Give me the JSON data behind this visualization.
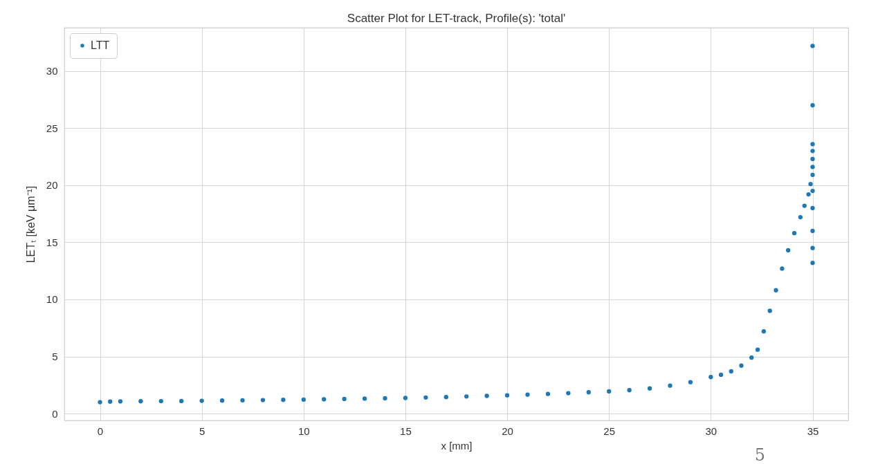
{
  "chart_data": {
    "type": "scatter",
    "title": "Scatter Plot for LET-track, Profile(s): 'total'",
    "xlabel": "x [mm]",
    "ylabel": "LETₜ [keV μm⁻¹]",
    "xlim": [
      -1.75,
      36.75
    ],
    "xticks": [
      0,
      5,
      10,
      15,
      20,
      25,
      30,
      35
    ],
    "ylim": [
      -0.6,
      33.8
    ],
    "yticks": [
      0,
      5,
      10,
      15,
      20,
      25,
      30
    ],
    "grid": true,
    "legend": "top left",
    "marker": "circle",
    "annotations": [
      "5"
    ],
    "series": [
      {
        "name": "LTT",
        "color": "#1f77b4",
        "x": [
          0,
          0.5,
          1,
          2,
          3,
          4,
          5,
          6,
          7,
          8,
          9,
          10,
          11,
          12,
          13,
          14,
          15,
          16,
          17,
          18,
          19,
          20,
          21,
          22,
          23,
          24,
          25,
          26,
          27,
          28,
          29,
          30,
          30.5,
          31,
          31.5,
          32,
          32.3,
          32.6,
          32.9,
          33.2,
          33.5,
          33.8,
          34.1,
          34.4,
          34.6,
          34.8,
          34.9,
          35,
          35,
          35,
          35,
          35,
          35,
          35,
          35,
          35,
          35,
          35,
          35
        ],
        "values": [
          1.0,
          1.05,
          1.07,
          1.08,
          1.09,
          1.1,
          1.12,
          1.14,
          1.16,
          1.18,
          1.2,
          1.22,
          1.25,
          1.28,
          1.31,
          1.34,
          1.37,
          1.41,
          1.45,
          1.5,
          1.55,
          1.6,
          1.66,
          1.72,
          1.79,
          1.87,
          1.95,
          2.05,
          2.2,
          2.45,
          2.75,
          3.2,
          3.4,
          3.7,
          4.2,
          4.9,
          5.6,
          7.2,
          9.0,
          10.8,
          12.7,
          14.3,
          15.8,
          17.2,
          18.2,
          19.2,
          20.1,
          32.2,
          27.0,
          23.6,
          23.0,
          22.3,
          21.6,
          20.9,
          19.5,
          18.0,
          16.0,
          14.5,
          13.2
        ]
      }
    ]
  }
}
